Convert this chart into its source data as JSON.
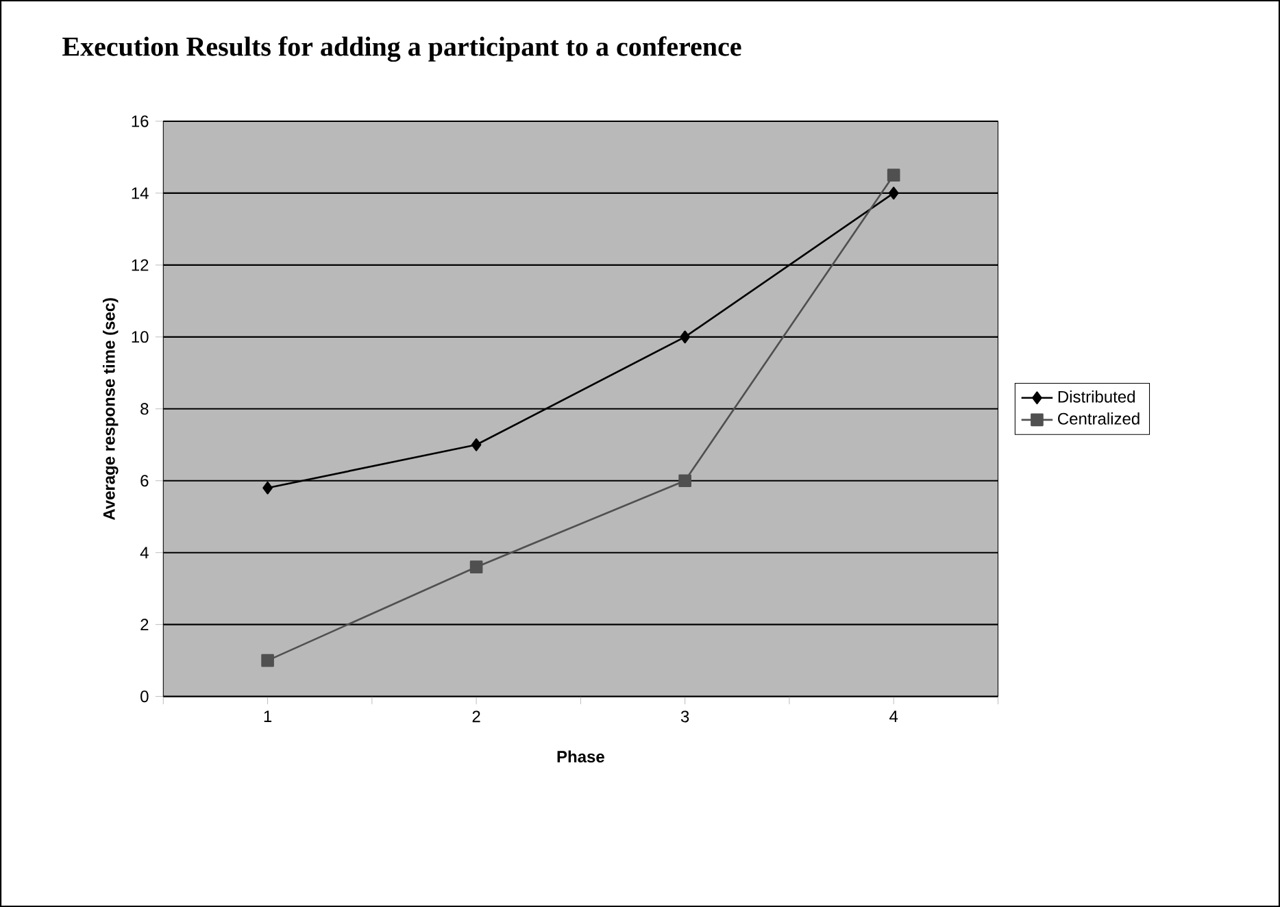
{
  "chart_data": {
    "type": "line",
    "title": "Execution Results for adding a participant to a conference",
    "xlabel": "Phase",
    "ylabel": "Average response time (sec)",
    "categories": [
      "1",
      "2",
      "3",
      "4"
    ],
    "series": [
      {
        "name": "Distributed",
        "color": "#000000",
        "marker": "diamond",
        "values": [
          5.8,
          7,
          10,
          14
        ]
      },
      {
        "name": "Centralized",
        "color": "#505050",
        "marker": "square",
        "values": [
          1.0,
          3.6,
          6,
          14.5
        ]
      }
    ],
    "ylim": [
      0,
      16
    ],
    "yticks": [
      0,
      2,
      4,
      6,
      8,
      10,
      12,
      14,
      16
    ],
    "grid": "y",
    "legend": "right"
  }
}
